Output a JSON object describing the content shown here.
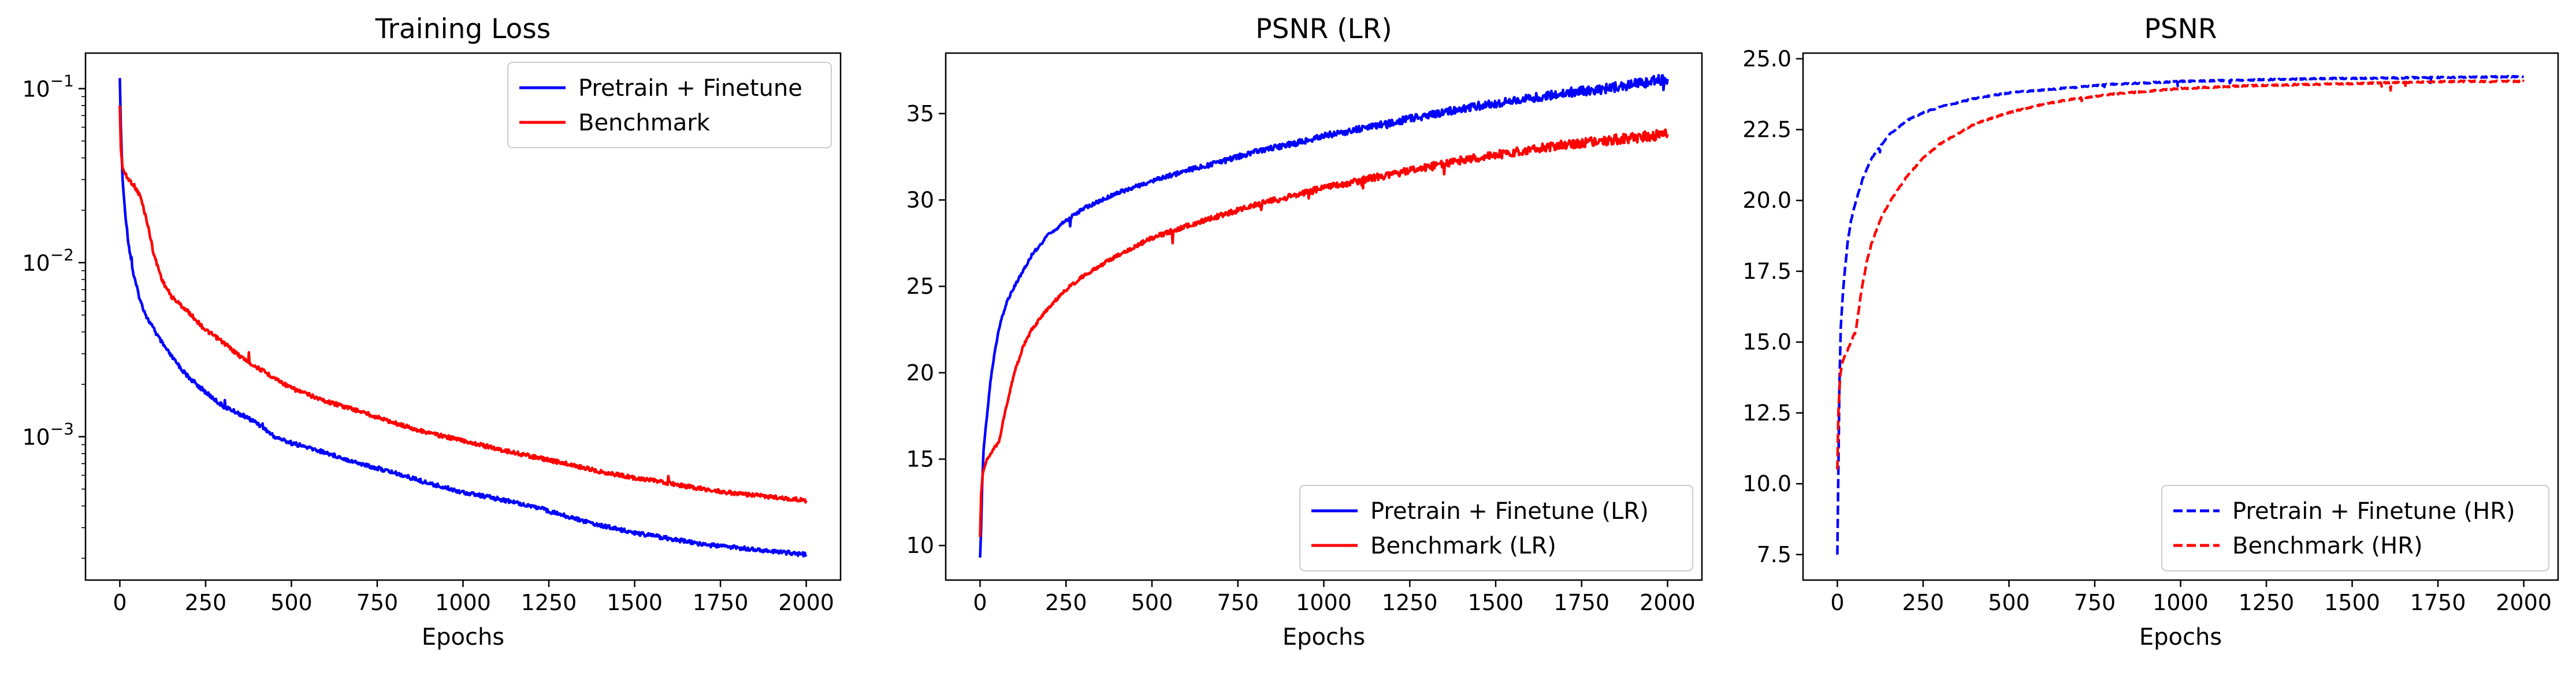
{
  "chart_data": [
    {
      "type": "line",
      "title": "Training Loss",
      "xlabel": "Epochs",
      "ylabel": "",
      "xlim": [
        -100,
        2100
      ],
      "ylim": [
        0.00015,
        0.16
      ],
      "yscale": "log",
      "xticks": [
        0,
        250,
        500,
        750,
        1000,
        1250,
        1500,
        1750,
        2000
      ],
      "xtick_labels": [
        "0",
        "250",
        "500",
        "750",
        "1000",
        "1250",
        "1500",
        "1750",
        "2000"
      ],
      "yticks": [
        0.001,
        0.01,
        0.1
      ],
      "ytick_labels": [
        {
          "base": "10",
          "exp": "−3"
        },
        {
          "base": "10",
          "exp": "−2"
        },
        {
          "base": "10",
          "exp": "−1"
        }
      ],
      "legend_position": "upper right",
      "series": [
        {
          "name": "Pretrain + Finetune",
          "color": "#0000ff",
          "dash": "solid",
          "points": [
            [
              0,
              0.115
            ],
            [
              3,
              0.06
            ],
            [
              8,
              0.03
            ],
            [
              15,
              0.02
            ],
            [
              25,
              0.013
            ],
            [
              40,
              0.0085
            ],
            [
              60,
              0.006
            ],
            [
              80,
              0.0048
            ],
            [
              100,
              0.0041
            ],
            [
              125,
              0.0034
            ],
            [
              150,
              0.0029
            ],
            [
              175,
              0.0025
            ],
            [
              200,
              0.0022
            ],
            [
              250,
              0.0018
            ],
            [
              300,
              0.0015
            ],
            [
              350,
              0.00135
            ],
            [
              400,
              0.0012
            ],
            [
              450,
              0.001
            ],
            [
              500,
              0.00092
            ],
            [
              600,
              0.00081
            ],
            [
              700,
              0.0007
            ],
            [
              800,
              0.00062
            ],
            [
              900,
              0.00054
            ],
            [
              1000,
              0.00048
            ],
            [
              1100,
              0.00044
            ],
            [
              1200,
              0.0004
            ],
            [
              1300,
              0.00035
            ],
            [
              1400,
              0.00031
            ],
            [
              1500,
              0.00028
            ],
            [
              1600,
              0.00026
            ],
            [
              1700,
              0.00024
            ],
            [
              1800,
              0.00023
            ],
            [
              1900,
              0.00022
            ],
            [
              2000,
              0.00021
            ]
          ]
        },
        {
          "name": "Benchmark",
          "color": "#ff0000",
          "dash": "solid",
          "points": [
            [
              0,
              0.08
            ],
            [
              3,
              0.045
            ],
            [
              8,
              0.035
            ],
            [
              20,
              0.031
            ],
            [
              40,
              0.028
            ],
            [
              60,
              0.024
            ],
            [
              80,
              0.017
            ],
            [
              100,
              0.011
            ],
            [
              125,
              0.0078
            ],
            [
              150,
              0.0064
            ],
            [
              200,
              0.0052
            ],
            [
              250,
              0.0041
            ],
            [
              300,
              0.0035
            ],
            [
              350,
              0.0029
            ],
            [
              400,
              0.0025
            ],
            [
              500,
              0.0019
            ],
            [
              600,
              0.0016
            ],
            [
              700,
              0.0014
            ],
            [
              800,
              0.0012
            ],
            [
              900,
              0.00105
            ],
            [
              1000,
              0.00095
            ],
            [
              1100,
              0.00085
            ],
            [
              1200,
              0.00077
            ],
            [
              1300,
              0.0007
            ],
            [
              1400,
              0.00063
            ],
            [
              1500,
              0.00058
            ],
            [
              1600,
              0.00054
            ],
            [
              1700,
              0.0005
            ],
            [
              1800,
              0.00047
            ],
            [
              1900,
              0.00045
            ],
            [
              2000,
              0.00043
            ]
          ]
        }
      ]
    },
    {
      "type": "line",
      "title": "PSNR (LR)",
      "xlabel": "Epochs",
      "ylabel": "",
      "xlim": [
        -100,
        2100
      ],
      "ylim": [
        8.0,
        38.5
      ],
      "yscale": "linear",
      "xticks": [
        0,
        250,
        500,
        750,
        1000,
        1250,
        1500,
        1750,
        2000
      ],
      "xtick_labels": [
        "0",
        "250",
        "500",
        "750",
        "1000",
        "1250",
        "1500",
        "1750",
        "2000"
      ],
      "yticks": [
        10,
        15,
        20,
        25,
        30,
        35
      ],
      "ytick_labels": [
        "10",
        "15",
        "20",
        "25",
        "30",
        "35"
      ],
      "legend_position": "lower right",
      "series": [
        {
          "name": "Pretrain + Finetune (LR)",
          "color": "#0000ff",
          "dash": "solid",
          "points": [
            [
              0,
              9.3
            ],
            [
              3,
              11
            ],
            [
              6,
              13.5
            ],
            [
              10,
              15.5
            ],
            [
              20,
              17.5
            ],
            [
              30,
              19.5
            ],
            [
              45,
              21.5
            ],
            [
              60,
              23
            ],
            [
              80,
              24.2
            ],
            [
              100,
              25
            ],
            [
              150,
              26.8
            ],
            [
              200,
              28
            ],
            [
              250,
              28.8
            ],
            [
              300,
              29.5
            ],
            [
              400,
              30.4
            ],
            [
              500,
              31.1
            ],
            [
              600,
              31.7
            ],
            [
              700,
              32.2
            ],
            [
              800,
              32.8
            ],
            [
              900,
              33.2
            ],
            [
              1000,
              33.7
            ],
            [
              1100,
              34.1
            ],
            [
              1200,
              34.5
            ],
            [
              1300,
              34.9
            ],
            [
              1400,
              35.3
            ],
            [
              1500,
              35.6
            ],
            [
              1600,
              35.9
            ],
            [
              1700,
              36.2
            ],
            [
              1800,
              36.4
            ],
            [
              1900,
              36.7
            ],
            [
              2000,
              37
            ]
          ]
        },
        {
          "name": "Benchmark (LR)",
          "color": "#ff0000",
          "dash": "solid",
          "points": [
            [
              0,
              10.5
            ],
            [
              3,
              13
            ],
            [
              8,
              14.2
            ],
            [
              20,
              15
            ],
            [
              40,
              15.6
            ],
            [
              55,
              16
            ],
            [
              70,
              17.5
            ],
            [
              85,
              18.8
            ],
            [
              100,
              20
            ],
            [
              125,
              21.5
            ],
            [
              150,
              22.5
            ],
            [
              200,
              23.8
            ],
            [
              250,
              24.8
            ],
            [
              300,
              25.6
            ],
            [
              400,
              26.8
            ],
            [
              500,
              27.8
            ],
            [
              600,
              28.5
            ],
            [
              700,
              29.1
            ],
            [
              800,
              29.7
            ],
            [
              900,
              30.2
            ],
            [
              1000,
              30.7
            ],
            [
              1100,
              31.1
            ],
            [
              1200,
              31.5
            ],
            [
              1300,
              31.9
            ],
            [
              1400,
              32.3
            ],
            [
              1500,
              32.6
            ],
            [
              1600,
              32.9
            ],
            [
              1700,
              33.2
            ],
            [
              1800,
              33.4
            ],
            [
              1900,
              33.6
            ],
            [
              2000,
              33.8
            ]
          ]
        }
      ]
    },
    {
      "type": "line",
      "title": "PSNR",
      "xlabel": "Epochs",
      "ylabel": "",
      "xlim": [
        -100,
        2100
      ],
      "ylim": [
        6.6,
        25.2
      ],
      "yscale": "linear",
      "xticks": [
        0,
        250,
        500,
        750,
        1000,
        1250,
        1500,
        1750,
        2000
      ],
      "xtick_labels": [
        "0",
        "250",
        "500",
        "750",
        "1000",
        "1250",
        "1500",
        "1750",
        "2000"
      ],
      "yticks": [
        7.5,
        10.0,
        12.5,
        15.0,
        17.5,
        20.0,
        22.5,
        25.0
      ],
      "ytick_labels": [
        "7.5",
        "10.0",
        "12.5",
        "15.0",
        "17.5",
        "20.0",
        "22.5",
        "25.0"
      ],
      "legend_position": "lower right",
      "series": [
        {
          "name": "Pretrain + Finetune (HR)",
          "color": "#0000ff",
          "dash": "dashed",
          "points": [
            [
              0,
              7.5
            ],
            [
              3,
              10.5
            ],
            [
              6,
              13.5
            ],
            [
              10,
              15.5
            ],
            [
              15,
              16.5
            ],
            [
              20,
              17.3
            ],
            [
              30,
              18.5
            ],
            [
              40,
              19.3
            ],
            [
              50,
              19.8
            ],
            [
              75,
              20.8
            ],
            [
              100,
              21.5
            ],
            [
              150,
              22.3
            ],
            [
              200,
              22.8
            ],
            [
              250,
              23.1
            ],
            [
              300,
              23.3
            ],
            [
              400,
              23.6
            ],
            [
              500,
              23.8
            ],
            [
              600,
              23.9
            ],
            [
              700,
              24
            ],
            [
              800,
              24.1
            ],
            [
              1000,
              24.2
            ],
            [
              1200,
              24.25
            ],
            [
              1400,
              24.3
            ],
            [
              1600,
              24.32
            ],
            [
              1800,
              24.35
            ],
            [
              2000,
              24.37
            ]
          ]
        },
        {
          "name": "Benchmark (HR)",
          "color": "#ff0000",
          "dash": "dashed",
          "points": [
            [
              0,
              10.5
            ],
            [
              3,
              12.5
            ],
            [
              8,
              13.8
            ],
            [
              15,
              14.3
            ],
            [
              25,
              14.6
            ],
            [
              40,
              15
            ],
            [
              55,
              15.5
            ],
            [
              70,
              16.8
            ],
            [
              85,
              17.8
            ],
            [
              100,
              18.5
            ],
            [
              125,
              19.3
            ],
            [
              150,
              19.9
            ],
            [
              200,
              20.8
            ],
            [
              250,
              21.5
            ],
            [
              300,
              22
            ],
            [
              400,
              22.7
            ],
            [
              500,
              23.1
            ],
            [
              600,
              23.4
            ],
            [
              700,
              23.6
            ],
            [
              800,
              23.75
            ],
            [
              1000,
              23.95
            ],
            [
              1200,
              24.05
            ],
            [
              1400,
              24.1
            ],
            [
              1600,
              24.15
            ],
            [
              1800,
              24.2
            ],
            [
              2000,
              24.2
            ]
          ]
        }
      ]
    }
  ]
}
